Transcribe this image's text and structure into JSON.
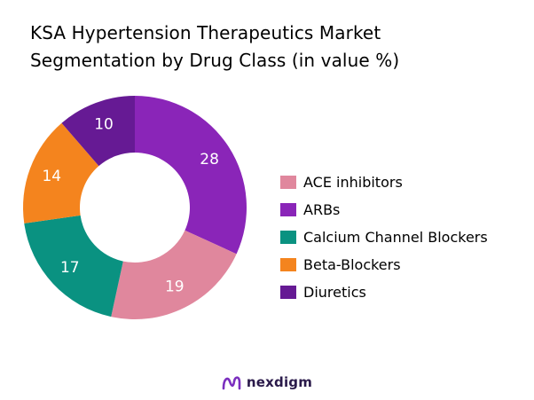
{
  "title_lines": [
    "KSA Hypertension Therapeutics Market",
    "Segmentation by Drug Class (in value %)"
  ],
  "chart_data": {
    "type": "pie",
    "donut": true,
    "title": "KSA Hypertension Therapeutics Market Segmentation by Drug Class (in value %)",
    "categories": [
      "ACE inhibitors",
      "ARBs",
      "Calcium Channel Blockers",
      "Beta-Blockers",
      "Diuretics"
    ],
    "values": [
      19,
      28,
      17,
      14,
      10
    ],
    "value_labels": [
      "19",
      "28",
      "17",
      "14",
      "10"
    ],
    "colors": [
      "#E0879D",
      "#8A25B8",
      "#0A9281",
      "#F4841E",
      "#661A94"
    ],
    "drawing_order": [
      1,
      0,
      2,
      3,
      4
    ],
    "legend_placement": "right"
  },
  "brand": {
    "name": "nexdigm",
    "logo_icon": "nexdigm-logo-icon"
  }
}
